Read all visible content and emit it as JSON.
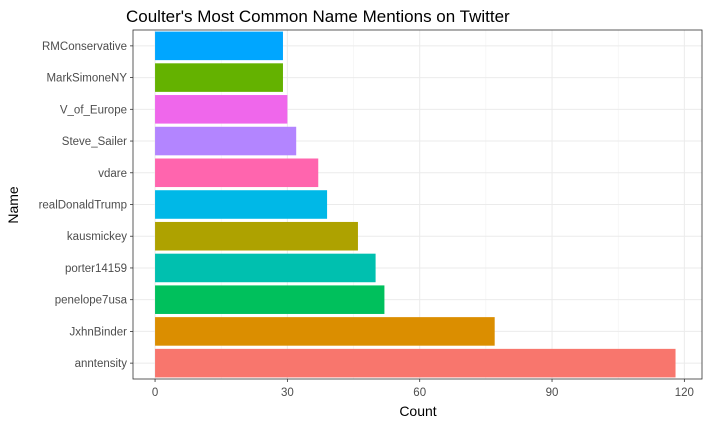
{
  "chart_data": {
    "type": "bar",
    "orientation": "horizontal",
    "title": "Coulter's Most Common Name Mentions on Twitter",
    "xlabel": "Count",
    "ylabel": "Name",
    "categories": [
      "anntensity",
      "JxhnBinder",
      "penelope7usa",
      "porter14159",
      "kausmickey",
      "realDonaldTrump",
      "vdare",
      "Steve_Sailer",
      "V_of_Europe",
      "MarkSimoneNY",
      "RMConservative"
    ],
    "values": [
      118,
      77,
      52,
      50,
      46,
      39,
      37,
      32,
      30,
      29,
      29
    ],
    "colors": [
      "#F8766D",
      "#DB8E00",
      "#00C05C",
      "#00C0AF",
      "#AEA200",
      "#00B8E7",
      "#FF65AE",
      "#B385FF",
      "#EF67EB",
      "#64B200",
      "#00A6FF"
    ],
    "xlim": [
      -5,
      124
    ],
    "xticks": [
      0,
      30,
      60,
      90,
      120
    ],
    "grid": true,
    "legend": "none"
  }
}
